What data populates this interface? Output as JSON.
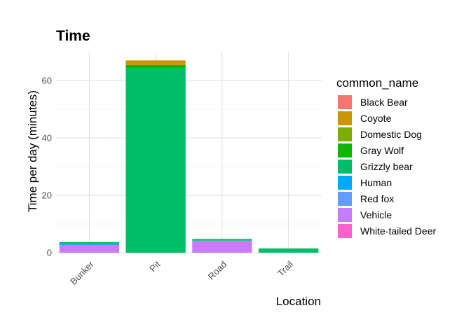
{
  "chart_data": {
    "type": "bar",
    "stacked": true,
    "title": "Time",
    "xlabel": "Location",
    "ylabel": "Time per day (minutes)",
    "categories": [
      "Bunker",
      "Pit",
      "Road",
      "Trail"
    ],
    "ylim": [
      0,
      70
    ],
    "yticks": [
      0,
      20,
      40,
      60
    ],
    "grid": true,
    "legend": {
      "title": "common_name",
      "position": "right"
    },
    "series": [
      {
        "name": "Black Bear",
        "color": "#F8766D",
        "values": [
          0,
          0,
          0,
          0
        ]
      },
      {
        "name": "Coyote",
        "color": "#CD9600",
        "values": [
          0,
          1.6,
          0,
          0
        ]
      },
      {
        "name": "Domestic Dog",
        "color": "#7CAE00",
        "values": [
          0,
          0,
          0,
          0
        ]
      },
      {
        "name": "Gray Wolf",
        "color": "#0CB702",
        "values": [
          0,
          1.1,
          0,
          0
        ]
      },
      {
        "name": "Grizzly bear",
        "color": "#00BE67",
        "values": [
          0.3,
          64.3,
          0.6,
          1.5
        ]
      },
      {
        "name": "Human",
        "color": "#00A9FF",
        "values": [
          0.6,
          0,
          0,
          0
        ]
      },
      {
        "name": "Red fox",
        "color": "#619CFF",
        "values": [
          0.3,
          0,
          0,
          0
        ]
      },
      {
        "name": "Vehicle",
        "color": "#C77CFF",
        "values": [
          2.5,
          0,
          4.2,
          0
        ]
      },
      {
        "name": "White-tailed Deer",
        "color": "#FF61CC",
        "values": [
          0,
          0,
          0,
          0
        ]
      }
    ]
  }
}
